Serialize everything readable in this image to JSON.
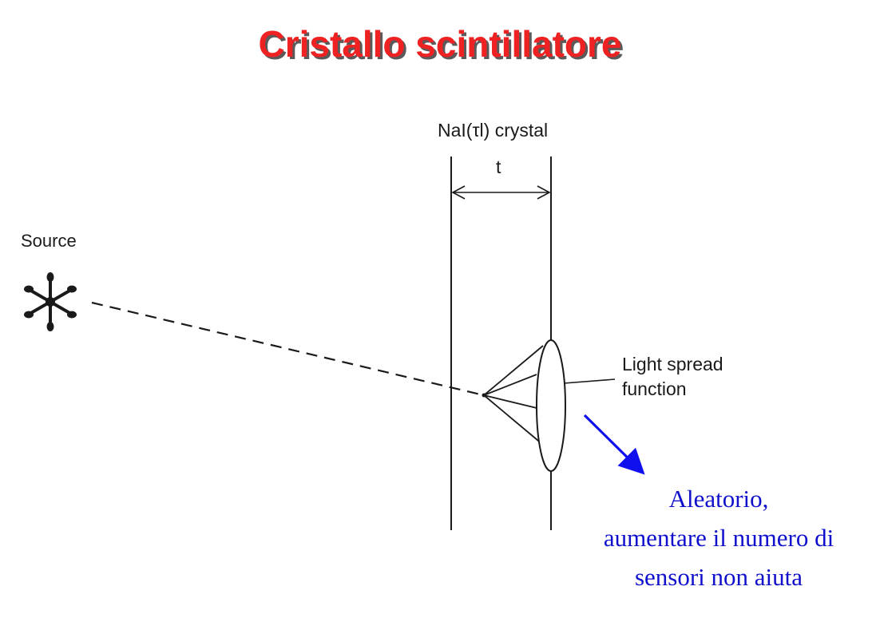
{
  "title": "Cristallo scintillatore",
  "labels": {
    "crystal": "NaI(τl) crystal",
    "thickness": "t",
    "source": "Source",
    "spread_line1": "Light spread",
    "spread_line2": "function"
  },
  "note": {
    "line1": "Aleatorio,",
    "line2": "aumentare il numero di",
    "line3": "sensori non aiuta"
  },
  "colors": {
    "title": "#ee2222",
    "title_shadow": "#5a5a5a",
    "note": "#1010cc",
    "arrow": "#1010ee",
    "ink": "#1a1a1a"
  },
  "icons": {
    "source": "asterisk-source-icon"
  }
}
